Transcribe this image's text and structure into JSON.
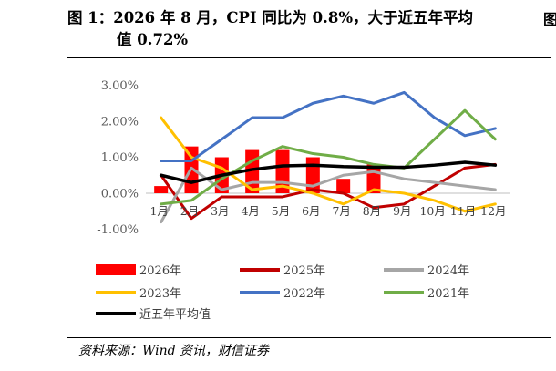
{
  "title": {
    "line1": "图 1：2026 年 8 月，CPI 同比为 0.8%，大于近五年平均",
    "line2": "值 0.72%",
    "right_fragment": "图"
  },
  "source": "资料来源：Wind 资讯，财信证券",
  "chart_data": {
    "type": "bar",
    "categories": [
      "1月",
      "2月",
      "3月",
      "4月",
      "5月",
      "6月",
      "7月",
      "8月",
      "9月",
      "10月",
      "11月",
      "12月"
    ],
    "yticks": [
      "3.00%",
      "2.00%",
      "1.00%",
      "0.00%",
      "-1.00%"
    ],
    "ylim": [
      -1.0,
      3.0
    ],
    "grid": false,
    "legend_position": "bottom",
    "series": [
      {
        "name": "2026年",
        "kind": "bar",
        "color": "#ff0000",
        "values": [
          0.2,
          1.3,
          1.0,
          1.2,
          1.2,
          1.0,
          0.4,
          0.8,
          null,
          null,
          null,
          null
        ]
      },
      {
        "name": "2025年",
        "kind": "line",
        "color": "#c00000",
        "values": [
          0.5,
          -0.7,
          -0.1,
          -0.1,
          -0.1,
          0.1,
          0.0,
          -0.4,
          -0.3,
          0.2,
          0.7,
          0.8
        ]
      },
      {
        "name": "2024年",
        "kind": "line",
        "color": "#a6a6a6",
        "values": [
          -0.8,
          0.7,
          0.1,
          0.3,
          0.3,
          0.2,
          0.5,
          0.6,
          0.4,
          0.3,
          0.2,
          0.1
        ]
      },
      {
        "name": "2023年",
        "kind": "line",
        "color": "#ffc000",
        "values": [
          2.1,
          1.0,
          0.7,
          0.1,
          0.2,
          0.0,
          -0.3,
          0.1,
          0.0,
          -0.2,
          -0.5,
          -0.3
        ]
      },
      {
        "name": "2022年",
        "kind": "line",
        "color": "#4472c4",
        "values": [
          0.9,
          0.9,
          1.5,
          2.1,
          2.1,
          2.5,
          2.7,
          2.5,
          2.8,
          2.1,
          1.6,
          1.8
        ]
      },
      {
        "name": "2021年",
        "kind": "line",
        "color": "#70ad47",
        "values": [
          -0.3,
          -0.2,
          0.4,
          0.9,
          1.3,
          1.1,
          1.0,
          0.8,
          0.7,
          1.5,
          2.3,
          1.5
        ]
      },
      {
        "name": "近五年平均值",
        "kind": "line",
        "color": "#000000",
        "values": [
          0.5,
          0.3,
          0.5,
          0.66,
          0.76,
          0.78,
          0.74,
          0.72,
          0.72,
          0.78,
          0.86,
          0.78
        ]
      }
    ]
  }
}
